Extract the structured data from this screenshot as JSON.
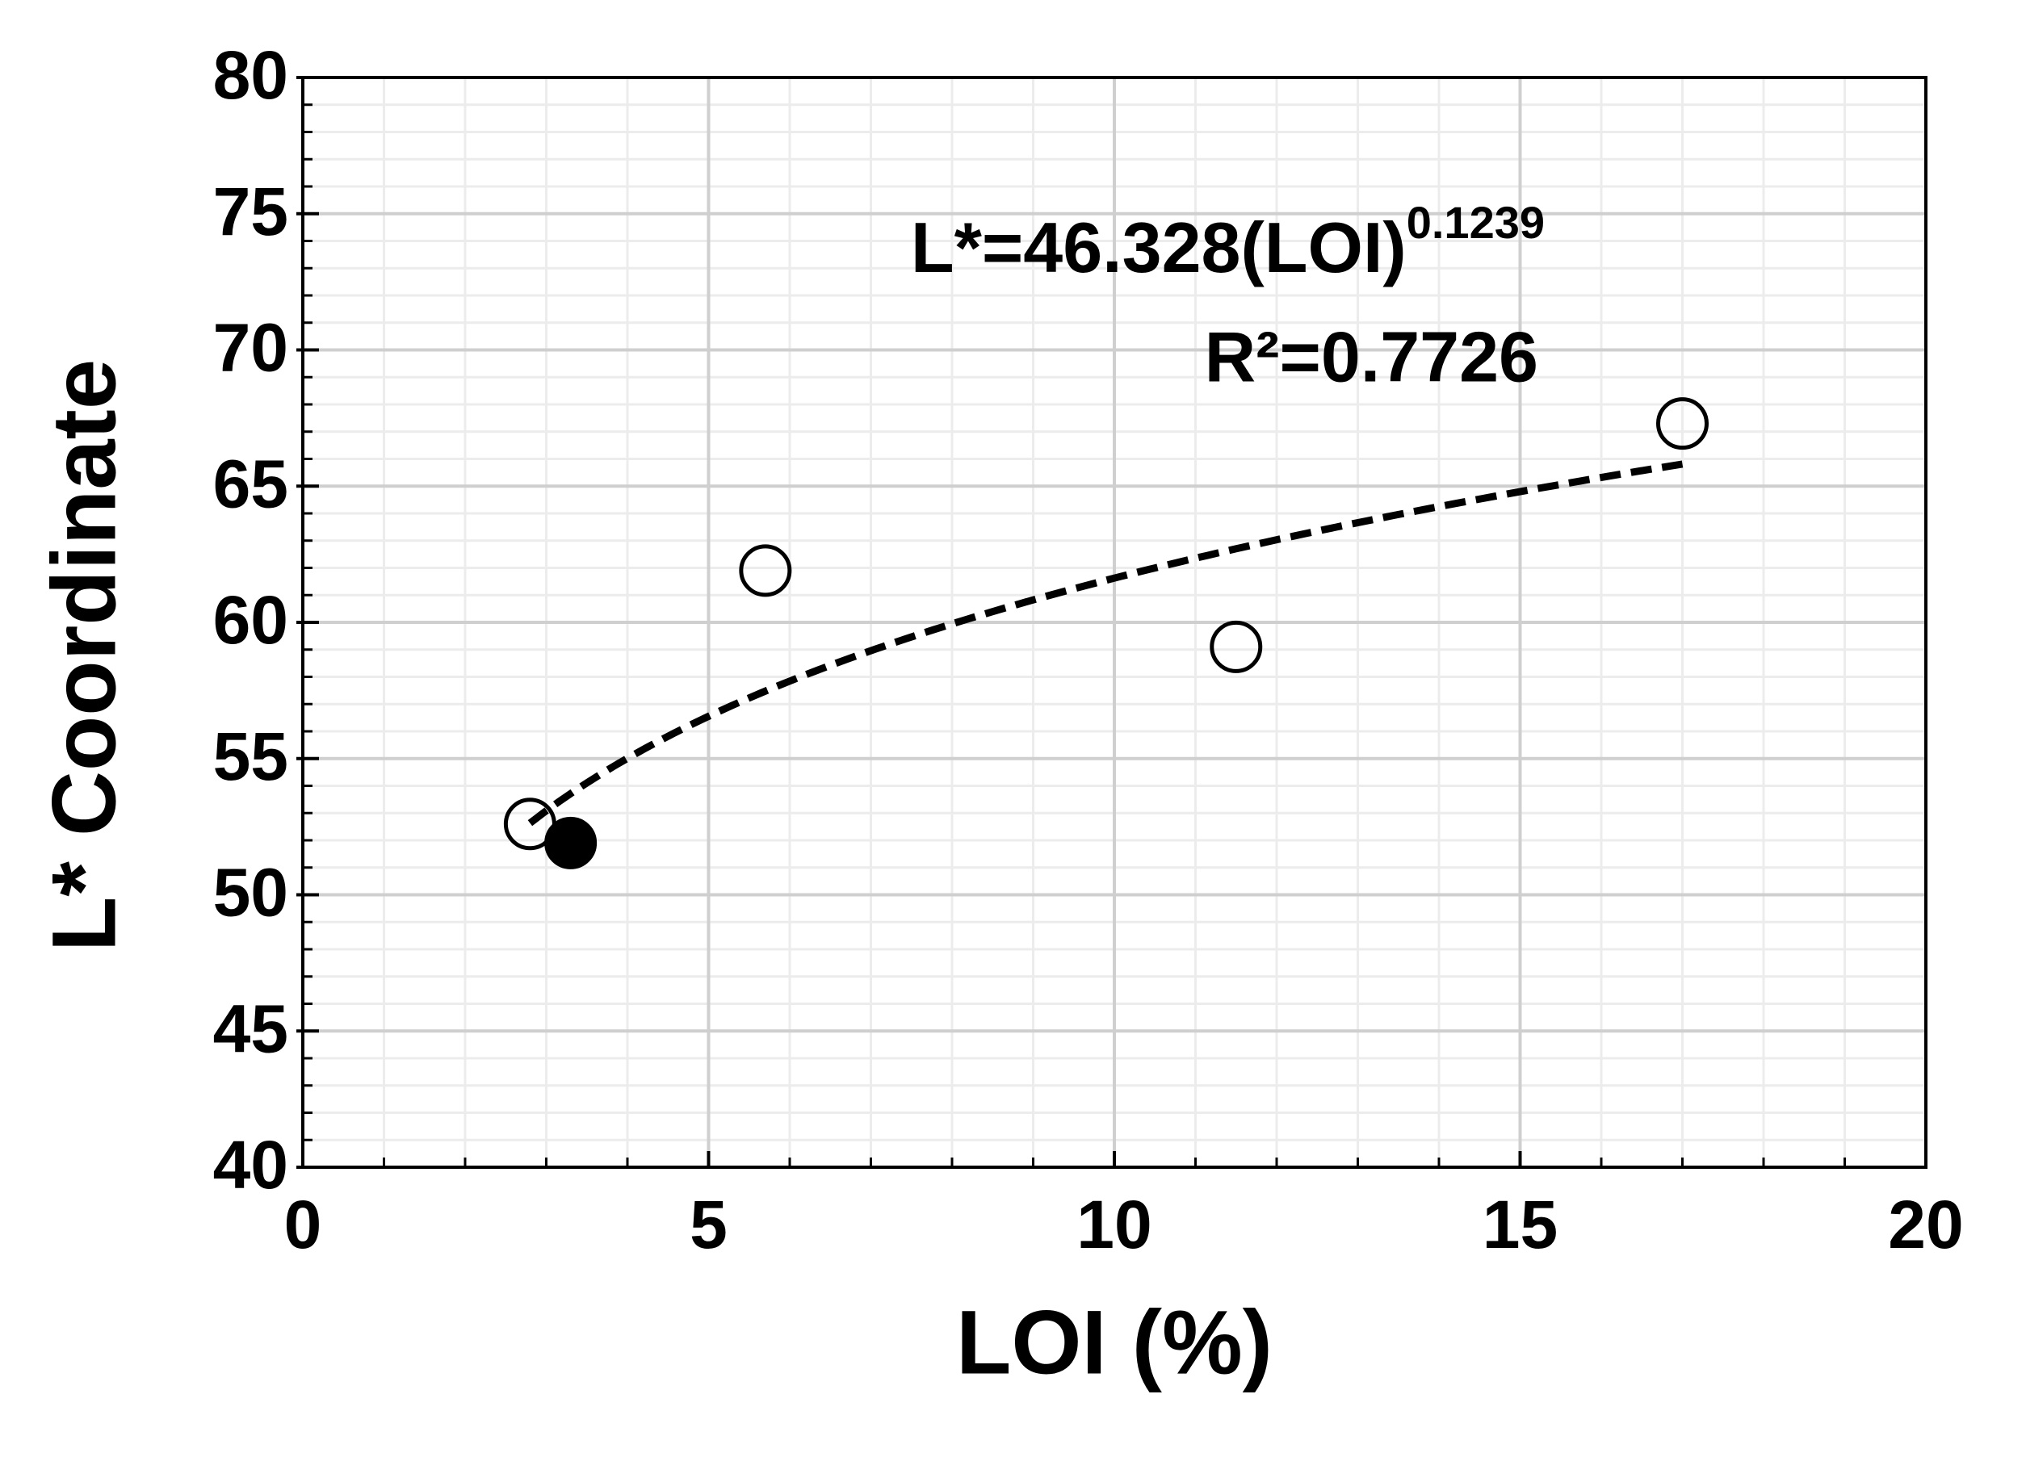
{
  "chart_data": {
    "type": "scatter",
    "x_label": "LOI (%)",
    "y_label": "L* Coordinate",
    "xlim": [
      0,
      20
    ],
    "xticks": [
      0,
      5,
      10,
      15,
      20
    ],
    "ylim": [
      40,
      80
    ],
    "yticks": [
      40,
      45,
      50,
      55,
      60,
      65,
      70,
      75,
      80
    ],
    "grid": true,
    "minor_divisions": 5,
    "series": [
      {
        "marker": "open",
        "color": "#000000",
        "x": [
          2.8,
          5.7,
          11.5,
          17.0
        ],
        "values": [
          52.6,
          61.9,
          59.1,
          67.3
        ]
      },
      {
        "marker": "filled",
        "color": "#000000",
        "x": [
          3.3
        ],
        "values": [
          51.9
        ]
      }
    ],
    "trendline": {
      "kind": "power",
      "a": 46.328,
      "b": 0.1239,
      "xlim": [
        2.8,
        17.0
      ],
      "color": "#000000"
    },
    "annotations": [
      {
        "text": "L*=46.328(LOI)",
        "superscript": "0.1239"
      },
      {
        "text": "R²=0.7726"
      }
    ]
  }
}
